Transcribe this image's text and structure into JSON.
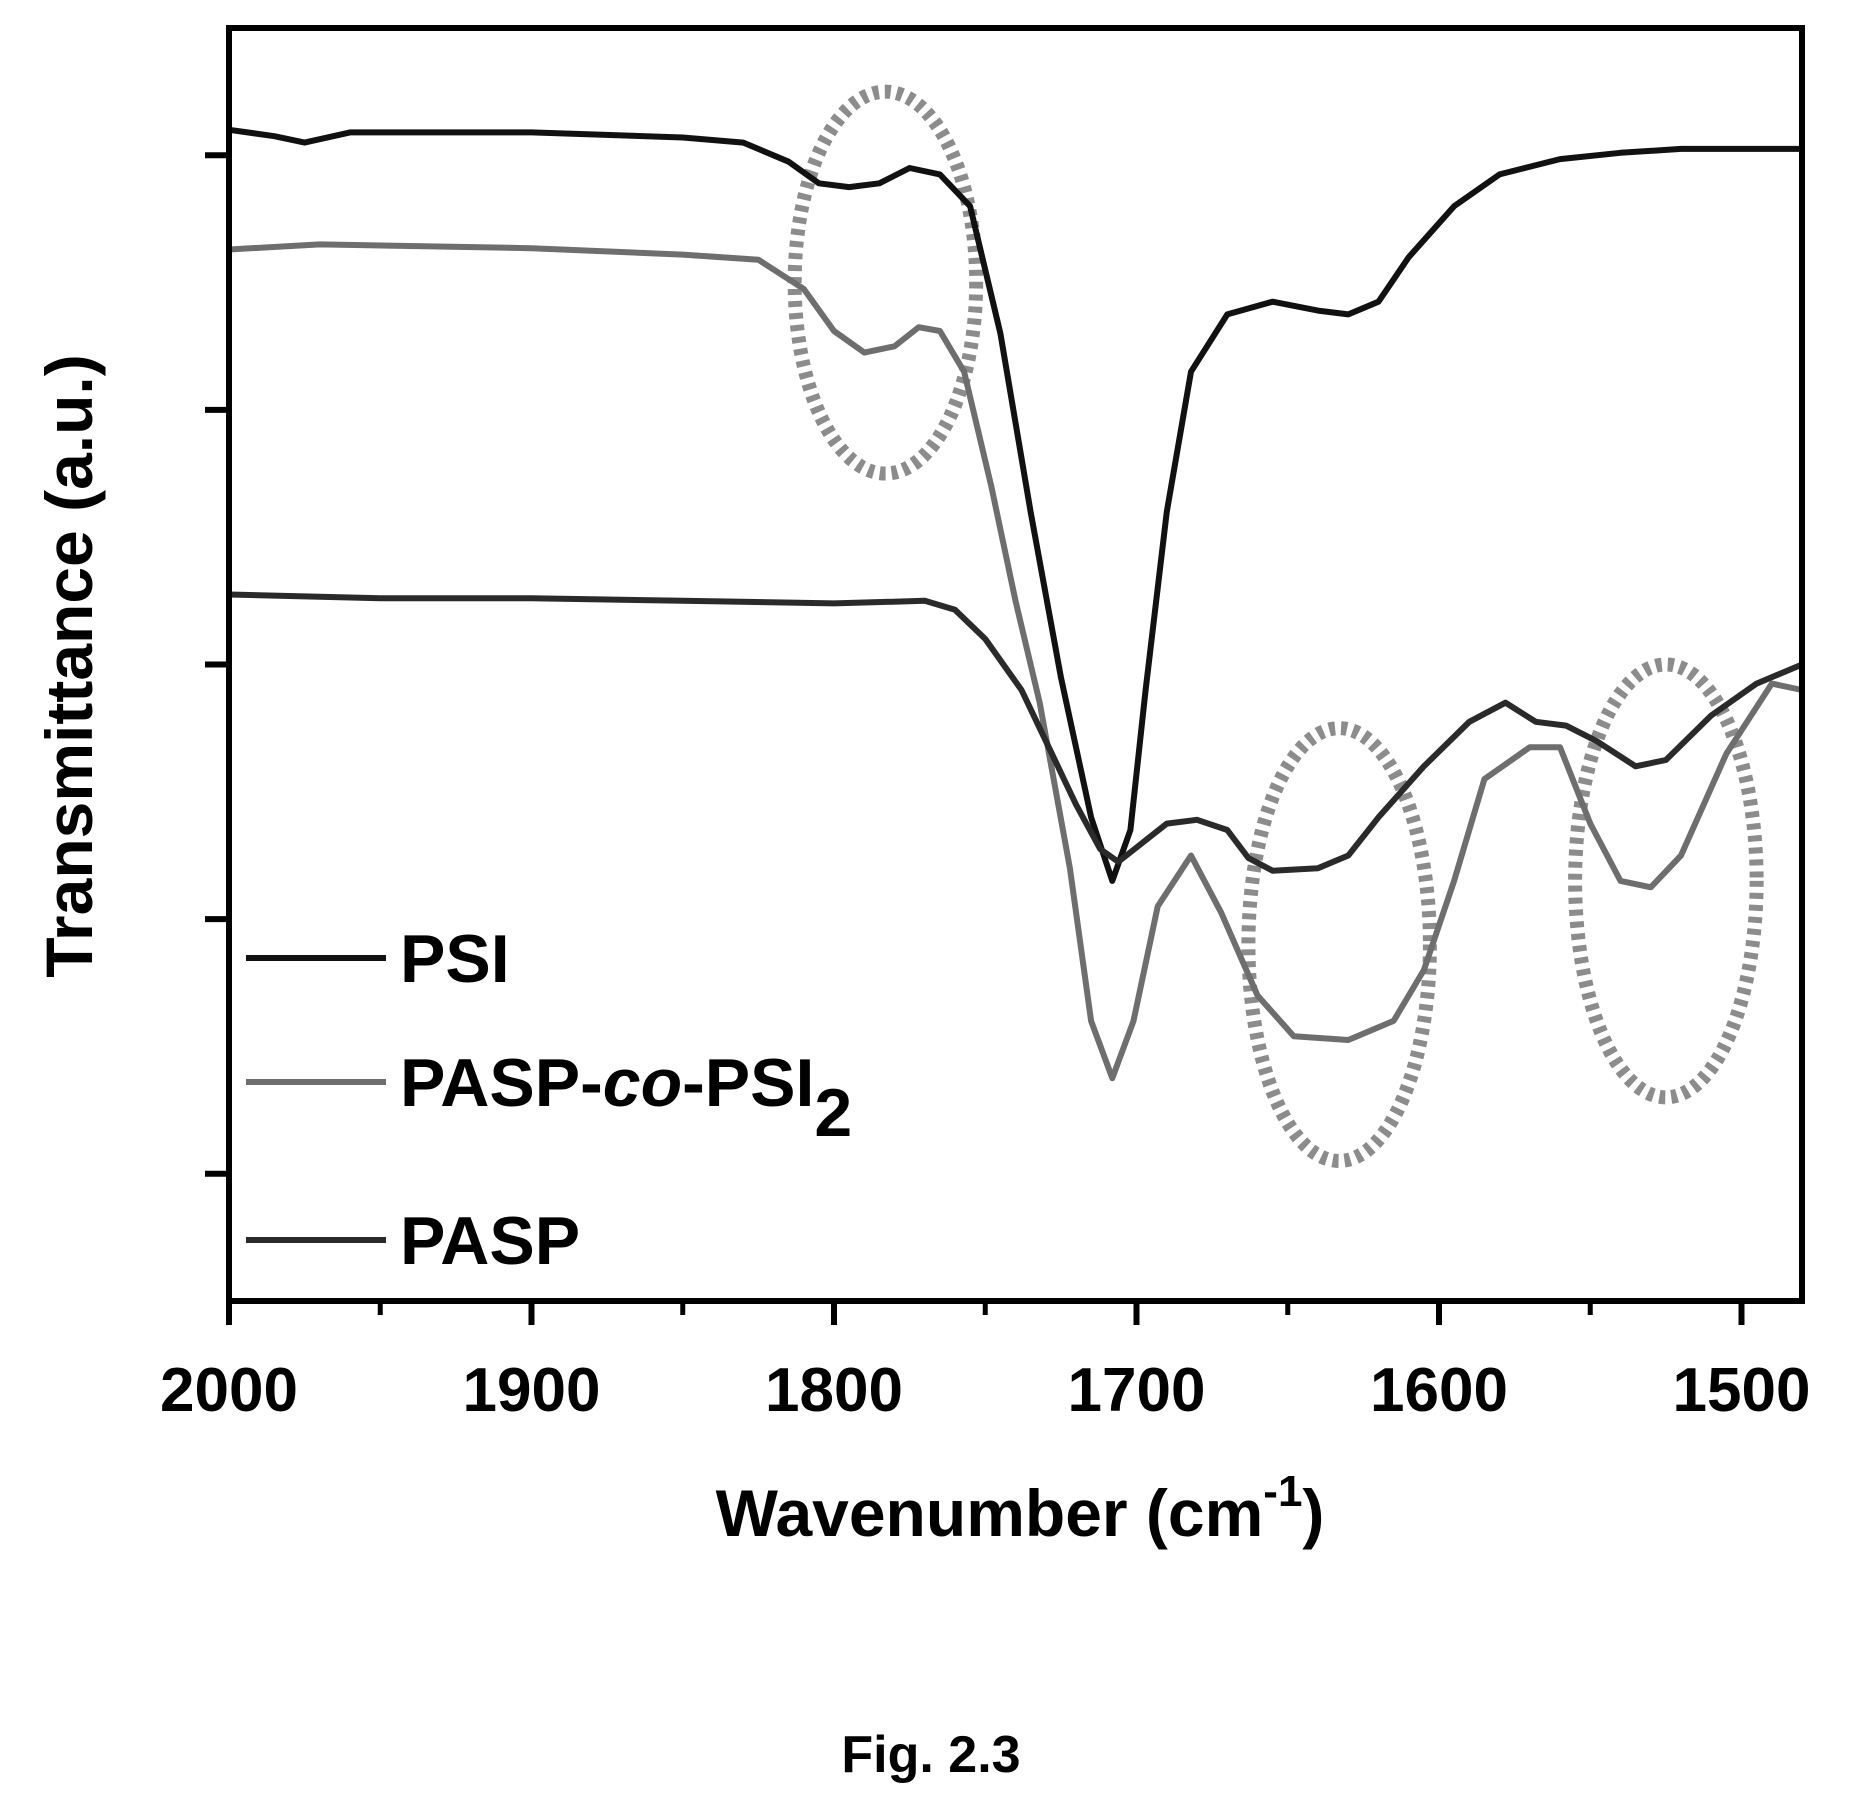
{
  "chart_data": {
    "type": "line",
    "xlabel": "Wavenumber (cm",
    "xlabel_sup": "-1",
    "xlabel_close": ")",
    "ylabel": "Transmittance (a.u.)",
    "xlim": [
      2000,
      1480
    ],
    "x_reversed": true,
    "xticks": [
      2000,
      1900,
      1800,
      1700,
      1600,
      1500
    ],
    "xtick_labels": [
      "2000",
      "1900",
      "1800",
      "1700",
      "1600",
      "1500"
    ],
    "ylim": [
      0,
      10
    ],
    "yticks": [
      1,
      3,
      5,
      7,
      9
    ],
    "ytick_labels_shown": false,
    "grid": false,
    "legend_position": "bottom-left",
    "series": [
      {
        "name": "PSI",
        "name_parts": [
          "PSI"
        ],
        "color": "#111111",
        "points": [
          [
            2000,
            9.2
          ],
          [
            1985,
            9.15
          ],
          [
            1975,
            9.1
          ],
          [
            1960,
            9.18
          ],
          [
            1900,
            9.18
          ],
          [
            1850,
            9.14
          ],
          [
            1830,
            9.1
          ],
          [
            1815,
            8.95
          ],
          [
            1805,
            8.78
          ],
          [
            1795,
            8.75
          ],
          [
            1785,
            8.78
          ],
          [
            1775,
            8.9
          ],
          [
            1765,
            8.85
          ],
          [
            1755,
            8.6
          ],
          [
            1745,
            7.6
          ],
          [
            1735,
            6.2
          ],
          [
            1725,
            4.9
          ],
          [
            1715,
            3.8
          ],
          [
            1708,
            3.3
          ],
          [
            1702,
            3.7
          ],
          [
            1697,
            4.8
          ],
          [
            1690,
            6.2
          ],
          [
            1682,
            7.3
          ],
          [
            1670,
            7.75
          ],
          [
            1655,
            7.85
          ],
          [
            1640,
            7.78
          ],
          [
            1630,
            7.75
          ],
          [
            1620,
            7.85
          ],
          [
            1610,
            8.2
          ],
          [
            1595,
            8.6
          ],
          [
            1580,
            8.85
          ],
          [
            1560,
            8.97
          ],
          [
            1540,
            9.02
          ],
          [
            1520,
            9.05
          ],
          [
            1500,
            9.05
          ],
          [
            1480,
            9.05
          ]
        ]
      },
      {
        "name": "PASP-co-PSI2",
        "name_parts": [
          "PASP-",
          "co",
          "-PSI",
          "2"
        ],
        "color": "#6e6e6e",
        "points": [
          [
            2000,
            8.26
          ],
          [
            1970,
            8.3
          ],
          [
            1900,
            8.27
          ],
          [
            1850,
            8.22
          ],
          [
            1825,
            8.18
          ],
          [
            1810,
            7.95
          ],
          [
            1800,
            7.62
          ],
          [
            1790,
            7.45
          ],
          [
            1780,
            7.5
          ],
          [
            1772,
            7.65
          ],
          [
            1765,
            7.62
          ],
          [
            1757,
            7.3
          ],
          [
            1748,
            6.4
          ],
          [
            1740,
            5.5
          ],
          [
            1732,
            4.7
          ],
          [
            1722,
            3.4
          ],
          [
            1715,
            2.2
          ],
          [
            1708,
            1.75
          ],
          [
            1701,
            2.2
          ],
          [
            1693,
            3.1
          ],
          [
            1682,
            3.5
          ],
          [
            1672,
            3.05
          ],
          [
            1660,
            2.4
          ],
          [
            1648,
            2.08
          ],
          [
            1630,
            2.05
          ],
          [
            1615,
            2.2
          ],
          [
            1605,
            2.6
          ],
          [
            1595,
            3.3
          ],
          [
            1585,
            4.1
          ],
          [
            1570,
            4.35
          ],
          [
            1560,
            4.35
          ],
          [
            1550,
            3.75
          ],
          [
            1540,
            3.3
          ],
          [
            1530,
            3.25
          ],
          [
            1520,
            3.5
          ],
          [
            1505,
            4.3
          ],
          [
            1490,
            4.85
          ],
          [
            1480,
            4.8
          ]
        ]
      },
      {
        "name": "PASP",
        "name_parts": [
          "PASP"
        ],
        "color": "#2a2a2a",
        "points": [
          [
            2000,
            5.55
          ],
          [
            1950,
            5.52
          ],
          [
            1900,
            5.52
          ],
          [
            1850,
            5.5
          ],
          [
            1800,
            5.48
          ],
          [
            1770,
            5.5
          ],
          [
            1760,
            5.43
          ],
          [
            1750,
            5.2
          ],
          [
            1738,
            4.8
          ],
          [
            1728,
            4.3
          ],
          [
            1720,
            3.9
          ],
          [
            1712,
            3.55
          ],
          [
            1706,
            3.45
          ],
          [
            1698,
            3.6
          ],
          [
            1690,
            3.75
          ],
          [
            1680,
            3.78
          ],
          [
            1670,
            3.7
          ],
          [
            1663,
            3.48
          ],
          [
            1655,
            3.38
          ],
          [
            1640,
            3.4
          ],
          [
            1630,
            3.5
          ],
          [
            1620,
            3.8
          ],
          [
            1605,
            4.2
          ],
          [
            1590,
            4.55
          ],
          [
            1578,
            4.7
          ],
          [
            1568,
            4.55
          ],
          [
            1558,
            4.52
          ],
          [
            1548,
            4.4
          ],
          [
            1535,
            4.2
          ],
          [
            1525,
            4.25
          ],
          [
            1510,
            4.6
          ],
          [
            1495,
            4.85
          ],
          [
            1480,
            5.0
          ]
        ]
      }
    ],
    "annotations": [
      {
        "type": "dotted-ellipse",
        "center": [
          1783,
          8.0
        ],
        "rx": 30,
        "ry": 1.5
      },
      {
        "type": "dotted-ellipse",
        "center": [
          1633,
          2.8
        ],
        "rx": 30,
        "ry": 1.7
      },
      {
        "type": "dotted-ellipse",
        "center": [
          1525,
          3.3
        ],
        "rx": 30,
        "ry": 1.7
      }
    ],
    "caption": "Fig. 2.3"
  }
}
